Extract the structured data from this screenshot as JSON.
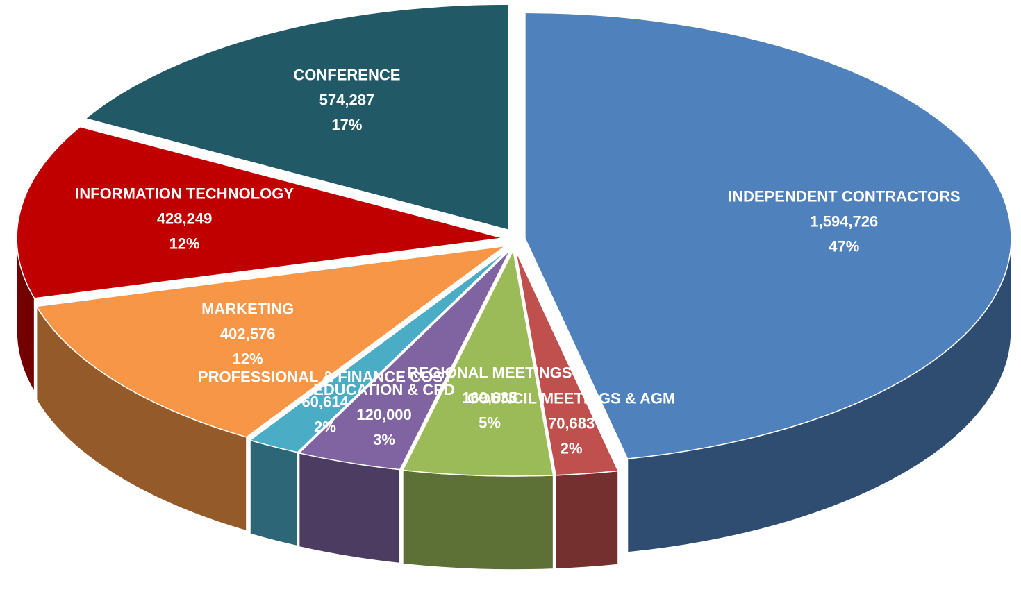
{
  "chart_data": {
    "type": "pie3d",
    "categories": [
      "INDEPENDENT CONTRACTORS",
      "COUNCIL MEETINGS & AGM",
      "REGIONAL MEETINGS",
      "EDUCATION & CPD",
      "PROFESSIONAL & FINANCE COST",
      "MARKETING",
      "INFORMATION TECHNOLOGY",
      "CONFERENCE"
    ],
    "values": [
      1594726,
      70683,
      169635,
      120000,
      60614,
      402576,
      428249,
      574287
    ],
    "value_labels": [
      "1,594,726",
      "70,683",
      "169,635",
      "120,000",
      "60,614",
      "402,576",
      "428,249",
      "574,287"
    ],
    "percent_labels": [
      "47%",
      "2%",
      "5%",
      "3%",
      "2%",
      "12%",
      "12%",
      "17%"
    ],
    "colors": [
      "#4f81bd",
      "#c0504d",
      "#9bbb59",
      "#8064a2",
      "#4bacc6",
      "#f79646",
      "#c00000",
      "#215967"
    ]
  }
}
